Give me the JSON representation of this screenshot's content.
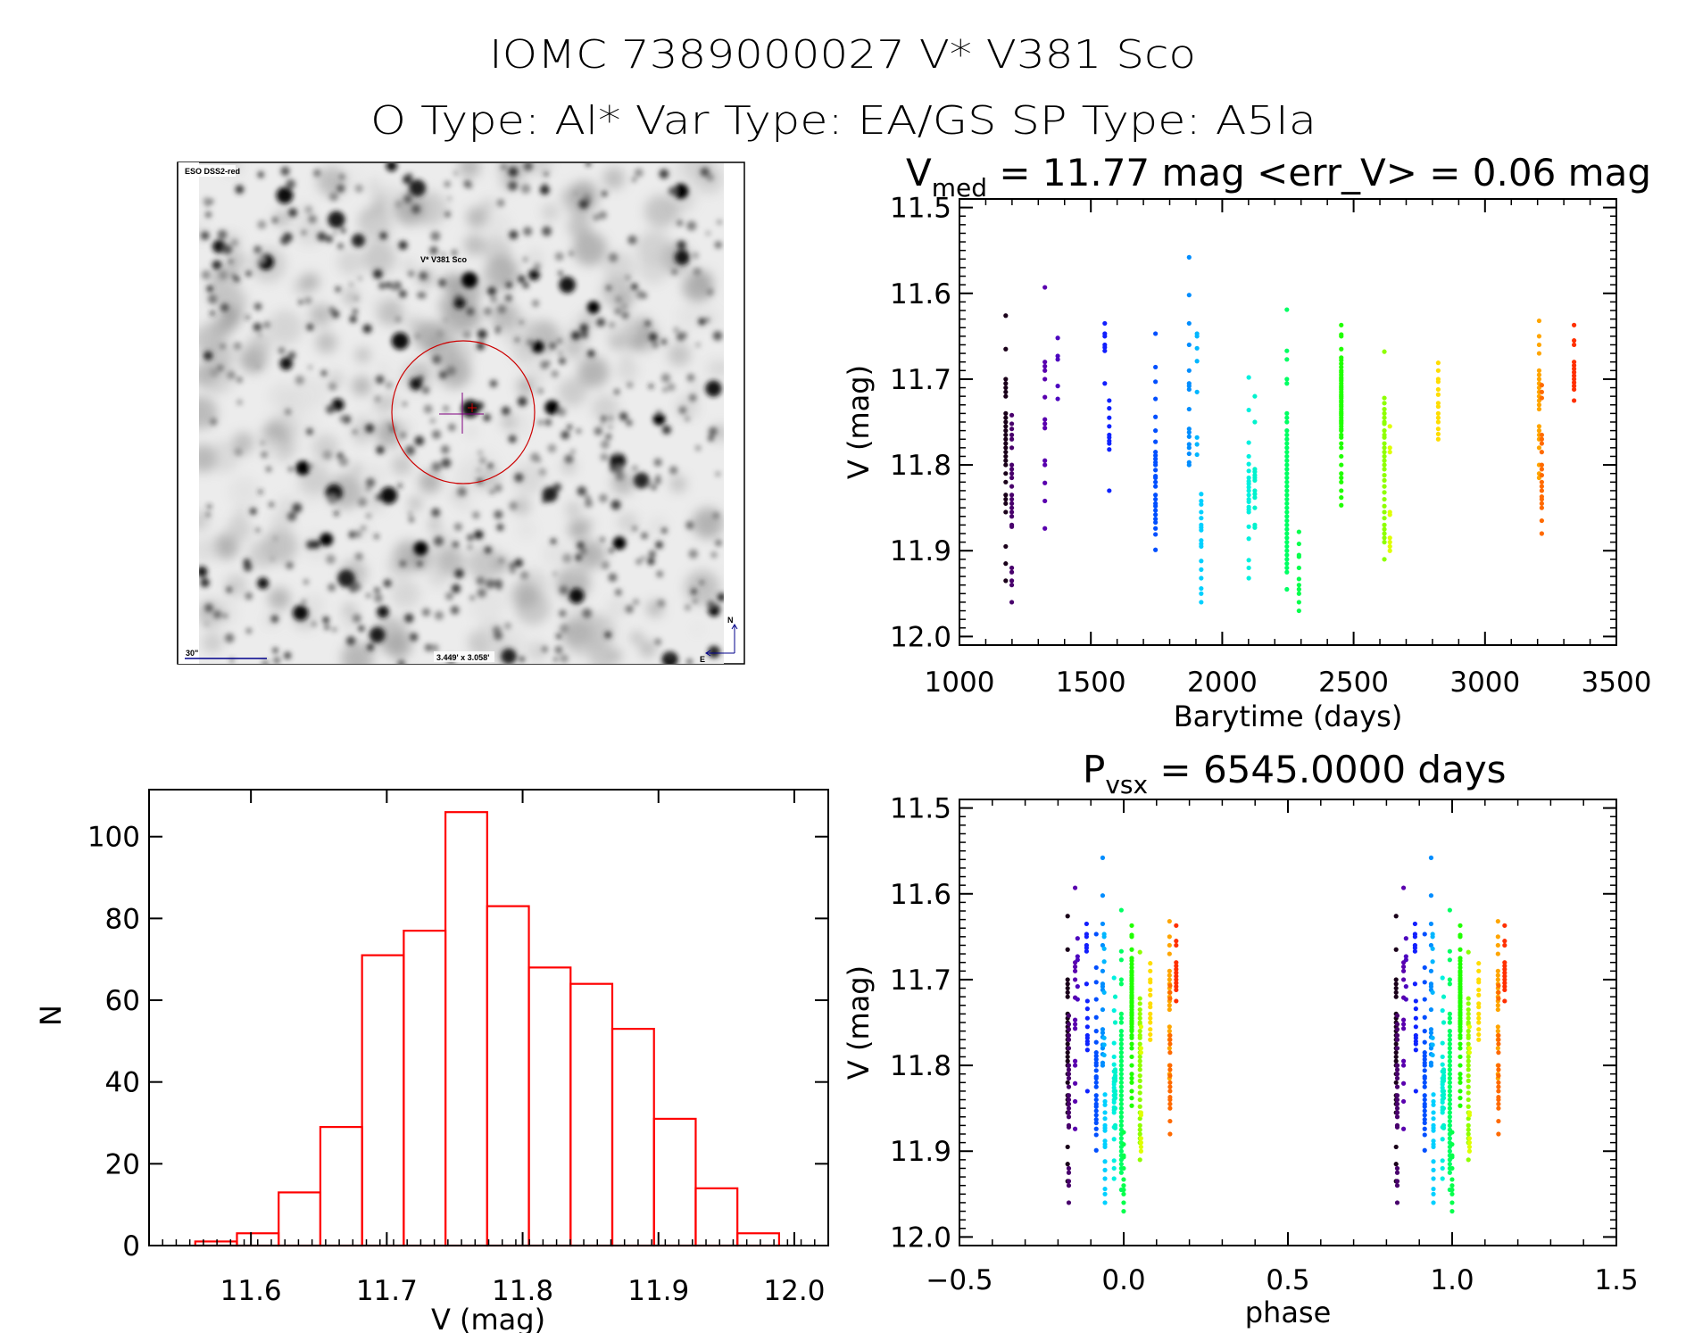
{
  "header": {
    "title_line1": "IOMC 7389000027    V* V381 Sco",
    "title_line2": "O Type: Al*   Var Type: EA/GS   SP Type: A5Ia"
  },
  "finder_image": {
    "survey_label": "ESO DSS2-red",
    "object_label": "V* V381 Sco",
    "scale_label": "30\"",
    "fov_label": "3.449' x 3.058'",
    "north_label": "N",
    "east_label": "E",
    "label_color": "#00008b",
    "marker_color": "#cc0000",
    "crosshair_color": "#800080"
  },
  "chart_data": [
    {
      "id": "light_curve",
      "type": "scatter",
      "title_main": "V",
      "title_sub": "med",
      "title_rest": " = 11.77 mag <err_V> = 0.06 mag",
      "xlabel": "Barytime (days)",
      "ylabel": "V (mag)",
      "xlim": [
        1000,
        3500
      ],
      "ylim": [
        11.49,
        12.01
      ],
      "y_inverted": true,
      "xticks": [
        "1000",
        "1500",
        "2000",
        "2500",
        "3000",
        "3500"
      ],
      "yticks": [
        "11.5",
        "11.6",
        "11.7",
        "11.8",
        "11.9",
        "12.0"
      ],
      "color_by": "time",
      "colormap": [
        {
          "t": 1176,
          "color": "#1a001a"
        },
        {
          "t": 1200,
          "color": "#4a0070"
        },
        {
          "t": 1330,
          "color": "#5a00b0"
        },
        {
          "t": 1560,
          "color": "#1020ff"
        },
        {
          "t": 1750,
          "color": "#0050ff"
        },
        {
          "t": 1880,
          "color": "#0090ff"
        },
        {
          "t": 1920,
          "color": "#00d0ff"
        },
        {
          "t": 2100,
          "color": "#00f0e0"
        },
        {
          "t": 2250,
          "color": "#00ff60"
        },
        {
          "t": 2453,
          "color": "#20ff00"
        },
        {
          "t": 2620,
          "color": "#90ff00"
        },
        {
          "t": 2640,
          "color": "#e8ff00"
        },
        {
          "t": 2822,
          "color": "#ffdd00"
        },
        {
          "t": 3206,
          "color": "#ffa500"
        },
        {
          "t": 3216,
          "color": "#ff6a00"
        },
        {
          "t": 3339,
          "color": "#ff3000"
        }
      ],
      "clusters": [
        {
          "t": 1176,
          "v": [
            11.626,
            11.665,
            11.7,
            11.705,
            11.71,
            11.715,
            11.72,
            11.74,
            11.745,
            11.75,
            11.755,
            11.76,
            11.765,
            11.77,
            11.775,
            11.78,
            11.785,
            11.79,
            11.795,
            11.8,
            11.81,
            11.82,
            11.835,
            11.84,
            11.845,
            11.855,
            11.895,
            11.915,
            11.935
          ]
        },
        {
          "t": 1199,
          "v": [
            11.742,
            11.752,
            11.758,
            11.765,
            11.77,
            11.78,
            11.8,
            11.805,
            11.81,
            11.815,
            11.825,
            11.835,
            11.84,
            11.845,
            11.85,
            11.855,
            11.86,
            11.87,
            11.872,
            11.92,
            11.925,
            11.935,
            11.94,
            11.96
          ]
        },
        {
          "t": 1325,
          "v": [
            11.593,
            11.68,
            11.685,
            11.69,
            11.7,
            11.721,
            11.747,
            11.752,
            11.757,
            11.795,
            11.8,
            11.821,
            11.842,
            11.874
          ]
        },
        {
          "t": 1374,
          "v": [
            11.652,
            11.673,
            11.677,
            11.708,
            11.723
          ]
        },
        {
          "t": 1553,
          "v": [
            11.635,
            11.647,
            11.65,
            11.66,
            11.663,
            11.667,
            11.705
          ]
        },
        {
          "t": 1570,
          "v": [
            11.725,
            11.734,
            11.745,
            11.755,
            11.765,
            11.768,
            11.772,
            11.775,
            11.782,
            11.83
          ]
        },
        {
          "t": 1746,
          "v": [
            11.647,
            11.686,
            11.703,
            11.723,
            11.744,
            11.76,
            11.773,
            11.785,
            11.789,
            11.793,
            11.797,
            11.8,
            11.806,
            11.813,
            11.815,
            11.82,
            11.825,
            11.835,
            11.84,
            11.845,
            11.848,
            11.853,
            11.858,
            11.863,
            11.867,
            11.874,
            11.881,
            11.899
          ]
        },
        {
          "t": 1874,
          "v": [
            11.558,
            11.602,
            11.635,
            11.66,
            11.69,
            11.705,
            11.708,
            11.712,
            11.735,
            11.758,
            11.762,
            11.767,
            11.776,
            11.78,
            11.787,
            11.797,
            11.8
          ]
        },
        {
          "t": 1904,
          "v": [
            11.647,
            11.65,
            11.664,
            11.679,
            11.715,
            11.768,
            11.776,
            11.788
          ]
        },
        {
          "t": 1920,
          "v": [
            11.834,
            11.842,
            11.846,
            11.855,
            11.862,
            11.87,
            11.873,
            11.876,
            11.888,
            11.892,
            11.895,
            11.912,
            11.922,
            11.932,
            11.944,
            11.95,
            11.96
          ]
        },
        {
          "t": 2101,
          "v": [
            11.698,
            11.736,
            11.774,
            11.79,
            11.799,
            11.807,
            11.815,
            11.819,
            11.822,
            11.826,
            11.83,
            11.835,
            11.84,
            11.843,
            11.849,
            11.852,
            11.855,
            11.872,
            11.886,
            11.911,
            11.92,
            11.932
          ]
        },
        {
          "t": 2124,
          "v": [
            11.72,
            11.75,
            11.805,
            11.808,
            11.812,
            11.815,
            11.818,
            11.83,
            11.834,
            11.838,
            11.85,
            11.87,
            11.873
          ]
        },
        {
          "t": 2246,
          "v": [
            11.619,
            11.667,
            11.677,
            11.7,
            11.705,
            11.74,
            11.745,
            11.75,
            11.76,
            11.765,
            11.77,
            11.775,
            11.78,
            11.785,
            11.79,
            11.795,
            11.8,
            11.805,
            11.81,
            11.815,
            11.82,
            11.825,
            11.83,
            11.835,
            11.84,
            11.845,
            11.85,
            11.855,
            11.86,
            11.865,
            11.87,
            11.875,
            11.88,
            11.885,
            11.89,
            11.895,
            11.9,
            11.905,
            11.91,
            11.915,
            11.92,
            11.925,
            11.945
          ]
        },
        {
          "t": 2292,
          "v": [
            11.878,
            11.892,
            11.905,
            11.907,
            11.92,
            11.933,
            11.94,
            11.945,
            11.95,
            11.96,
            11.97
          ]
        },
        {
          "t": 2453,
          "v": [
            11.637,
            11.648,
            11.65,
            11.665,
            11.675,
            11.678,
            11.682,
            11.686,
            11.69,
            11.692,
            11.695,
            11.698,
            11.7,
            11.702,
            11.705,
            11.708,
            11.71,
            11.712,
            11.715,
            11.718,
            11.72,
            11.722,
            11.725,
            11.727,
            11.73,
            11.732,
            11.735,
            11.738,
            11.74,
            11.742,
            11.745,
            11.748,
            11.75,
            11.752,
            11.755,
            11.758,
            11.76,
            11.765,
            11.768,
            11.775,
            11.78,
            11.79,
            11.8,
            11.81,
            11.815,
            11.82,
            11.83,
            11.838,
            11.847
          ]
        },
        {
          "t": 2617,
          "v": [
            11.668,
            11.722,
            11.728,
            11.735,
            11.74,
            11.745,
            11.75,
            11.752,
            11.76,
            11.765,
            11.768,
            11.775,
            11.78,
            11.785,
            11.79,
            11.795,
            11.8,
            11.805,
            11.812,
            11.818,
            11.825,
            11.832,
            11.84,
            11.848,
            11.855,
            11.862,
            11.87,
            11.875,
            11.88,
            11.885,
            11.89,
            11.91
          ]
        },
        {
          "t": 2638,
          "v": [
            11.755,
            11.78,
            11.785,
            11.855,
            11.858,
            11.885,
            11.89,
            11.895,
            11.9
          ]
        },
        {
          "t": 2822,
          "v": [
            11.681,
            11.69,
            11.7,
            11.703,
            11.712,
            11.718,
            11.728,
            11.732,
            11.74,
            11.745,
            11.75,
            11.758,
            11.764,
            11.77
          ]
        },
        {
          "t": 3206,
          "v": [
            11.632,
            11.65,
            11.66,
            11.67,
            11.69,
            11.695,
            11.7,
            11.705,
            11.71,
            11.715,
            11.72,
            11.725,
            11.73,
            11.735,
            11.755,
            11.76,
            11.765,
            11.77,
            11.78,
            11.8,
            11.81,
            11.815
          ]
        },
        {
          "t": 3216,
          "v": [
            11.707,
            11.715,
            11.722,
            11.765,
            11.77,
            11.775,
            11.785,
            11.8,
            11.805,
            11.812,
            11.82,
            11.825,
            11.83,
            11.837,
            11.84,
            11.845,
            11.85,
            11.865,
            11.88
          ]
        },
        {
          "t": 3339,
          "v": [
            11.637,
            11.655,
            11.66,
            11.68,
            11.684,
            11.688,
            11.692,
            11.696,
            11.7,
            11.704,
            11.708,
            11.712,
            11.725
          ]
        }
      ]
    },
    {
      "id": "phase_plot",
      "type": "scatter",
      "title_main": "P",
      "title_sub": "vsx",
      "title_rest": " = 6545.0000 days",
      "period_days": 6545.0,
      "xlabel": "phase",
      "ylabel": "V (mag)",
      "xlim": [
        -0.5,
        1.5
      ],
      "ylim": [
        11.49,
        12.01
      ],
      "y_inverted": true,
      "xticks": [
        "−0.5",
        "0.0",
        "0.5",
        "1.0",
        "1.5"
      ],
      "yticks": [
        "11.5",
        "11.6",
        "11.7",
        "11.8",
        "11.9",
        "12.0"
      ],
      "source": "light_curve points folded on period, plotted twice (phase and phase+1)"
    },
    {
      "id": "histogram",
      "type": "bar",
      "xlabel": "V (mag)",
      "ylabel": "N",
      "xlim": [
        11.525,
        12.025
      ],
      "ylim": [
        0,
        111.5
      ],
      "bar_color": "#ff0000",
      "bin_start": 11.559,
      "bin_width": 0.0307,
      "counts": [
        1,
        3,
        13,
        29,
        71,
        77,
        106,
        83,
        68,
        64,
        53,
        31,
        14,
        3
      ],
      "xticks": [
        "11.6",
        "11.7",
        "11.8",
        "11.9",
        "12.0"
      ],
      "yticks": [
        "0",
        "20",
        "40",
        "60",
        "80",
        "100"
      ]
    }
  ]
}
